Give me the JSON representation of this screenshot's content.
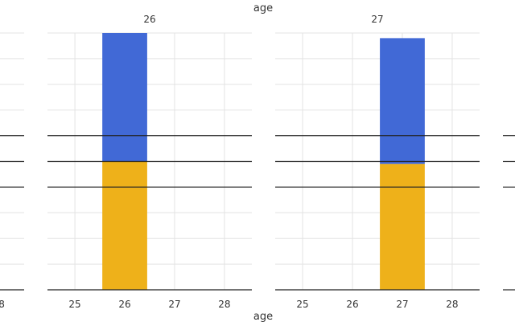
{
  "chart_data": {
    "type": "bar",
    "top_label": "age",
    "xlabel": "age",
    "panels": [
      {
        "title": "26",
        "x_ticks": [
          "25",
          "26",
          "27",
          "28"
        ],
        "xlim": [
          24.45,
          28.55
        ],
        "ylim": [
          0,
          1
        ],
        "bars": [
          {
            "x": 26,
            "segments": [
              {
                "value": 0.5
              },
              {
                "value": 0.5
              }
            ]
          }
        ],
        "reference_lines": [
          0.4,
          0.5,
          0.6
        ]
      },
      {
        "title": "27",
        "x_ticks": [
          "25",
          "26",
          "27",
          "28"
        ],
        "xlim": [
          24.45,
          28.55
        ],
        "ylim": [
          0,
          1
        ],
        "bars": [
          {
            "x": 27,
            "segments": [
              {
                "value": 0.49
              },
              {
                "value": 0.49
              }
            ]
          }
        ],
        "reference_lines": [
          0.4,
          0.5,
          0.6
        ]
      }
    ],
    "partial_left_panel": {
      "x_tick_fragment": "8"
    },
    "colors": {
      "segment_bottom": "#EEB11A",
      "segment_top": "#4169D6",
      "grid": "#e3e3e3",
      "axis": "#222222"
    },
    "grid": true
  }
}
